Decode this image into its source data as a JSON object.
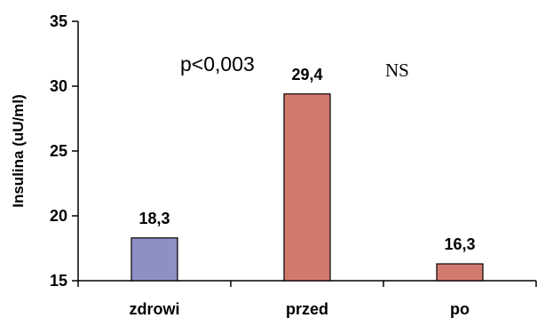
{
  "chart_data": {
    "type": "bar",
    "categories": [
      "zdrowi",
      "przed",
      "po"
    ],
    "values": [
      18.3,
      29.4,
      16.3
    ],
    "value_labels": [
      "18,3",
      "29,4",
      "16,3"
    ],
    "colors": [
      "#8e8fc4",
      "#d4796d",
      "#d4796d"
    ],
    "ylabel": "Insulina (uU/ml)",
    "xlabel": "",
    "ylim": [
      15,
      35
    ],
    "yticks": [
      15,
      20,
      25,
      30,
      35
    ],
    "grid": false,
    "annotations": [
      {
        "text": "p<0,003",
        "near": "przed"
      },
      {
        "text": "NS",
        "near": "przed"
      }
    ]
  }
}
